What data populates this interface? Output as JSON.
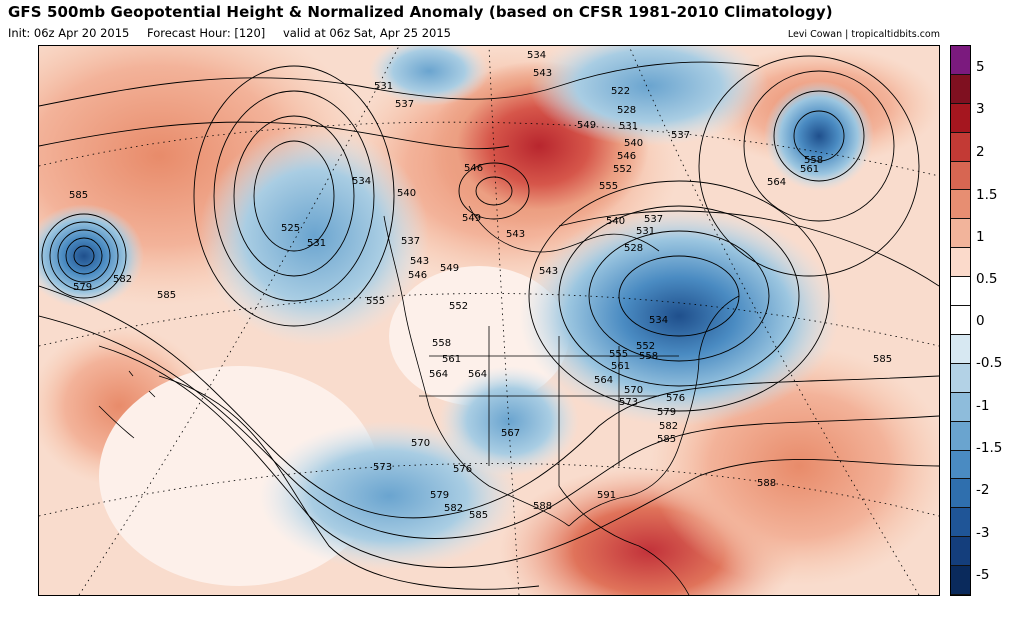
{
  "header": {
    "title": "GFS 500mb Geopotential Height & Normalized Anomaly (based on CFSR 1981-2010 Climatology)",
    "init": "Init: 06z Apr 20 2015",
    "forecast_hour": "Forecast Hour: [120]",
    "valid": "valid at 06z Sat, Apr 25 2015",
    "credit": "Levi Cowan | tropicaltidbits.com"
  },
  "map": {
    "contour_labels": [
      "534",
      "543",
      "531",
      "537",
      "522",
      "528",
      "531",
      "537",
      "540",
      "546",
      "549",
      "552",
      "555",
      "558",
      "561",
      "564",
      "585",
      "579",
      "582",
      "585",
      "525",
      "531",
      "534",
      "540",
      "537",
      "543",
      "546",
      "549",
      "552",
      "555",
      "558",
      "561",
      "564",
      "567",
      "570",
      "573",
      "576",
      "579",
      "582",
      "585",
      "588",
      "591",
      "588",
      "585",
      "549",
      "546",
      "543",
      "540",
      "537",
      "531",
      "528",
      "534",
      "552",
      "555",
      "561",
      "564",
      "570",
      "573",
      "576",
      "579",
      "582",
      "585",
      "558",
      "564",
      "543"
    ],
    "colors": {
      "strong_positive": "#b8262e",
      "positive": "#e88b6a",
      "weak_positive": "#f7c9b0",
      "neutral": "#fdf0ea",
      "weak_negative": "#cfe3ef",
      "negative": "#86b8d8",
      "strong_negative": "#1f4f8c"
    }
  },
  "colorbar": {
    "labels": [
      "5",
      "3",
      "2",
      "1.5",
      "1",
      "0.5",
      "0",
      "-0.5",
      "-1",
      "-1.5",
      "-2",
      "-3",
      "-5"
    ],
    "segments": [
      "#7b1a7e",
      "#7f1020",
      "#a5161f",
      "#c33a35",
      "#d76652",
      "#e78e72",
      "#f2b49b",
      "#fbdacb",
      "#ffffff",
      "#ffffff",
      "#d7e8f2",
      "#b3d2e6",
      "#8ebcdb",
      "#6aa4cf",
      "#4a8bc2",
      "#2f6fae",
      "#1f5597",
      "#143e7c",
      "#0a2a5c"
    ]
  }
}
